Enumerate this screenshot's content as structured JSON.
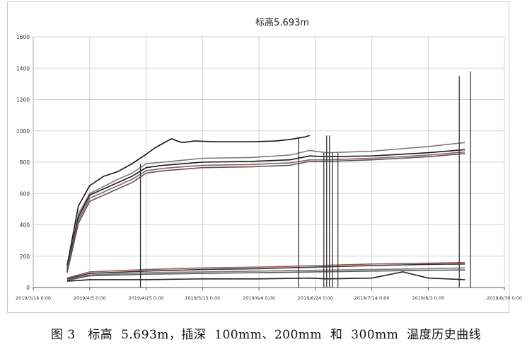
{
  "chart_data": {
    "type": "line",
    "title": "标高5.693m",
    "xlabel": "",
    "ylabel": "",
    "ylim": [
      0,
      1600
    ],
    "yticks": [
      0,
      200,
      400,
      600,
      800,
      1000,
      1200,
      1400,
      1600
    ],
    "xlim": [
      "2019-03-16",
      "2019-08-30"
    ],
    "xticks": [
      "2019/3/16 0:00",
      "2019/4/5 0:00",
      "2019/4/25 0:00",
      "2019/5/15 0:00",
      "2019/6/4 0:00",
      "2019/6/24 0:00",
      "2019/7/14 0:00",
      "2019/8/3 0:00",
      "2019/8/30 0:00"
    ],
    "xtick_dates": [
      "2019-03-16",
      "2019-04-05",
      "2019-04-25",
      "2019-05-15",
      "2019-06-04",
      "2019-06-24",
      "2019-07-14",
      "2019-08-03",
      "2019-08-30"
    ],
    "grid": true,
    "legend": "none",
    "series": [
      {
        "color": "#151515",
        "points": [
          [
            "2019-03-28",
            140
          ],
          [
            "2019-04-01",
            520
          ],
          [
            "2019-04-05",
            650
          ],
          [
            "2019-04-10",
            710
          ],
          [
            "2019-04-15",
            740
          ],
          [
            "2019-04-20",
            790
          ],
          [
            "2019-04-25",
            850
          ],
          [
            "2019-04-28",
            890
          ],
          [
            "2019-05-01",
            920
          ],
          [
            "2019-05-04",
            950
          ],
          [
            "2019-05-06",
            935
          ],
          [
            "2019-05-08",
            925
          ],
          [
            "2019-05-12",
            935
          ],
          [
            "2019-05-20",
            930
          ],
          [
            "2019-06-01",
            930
          ],
          [
            "2019-06-10",
            935
          ],
          [
            "2019-06-15",
            945
          ],
          [
            "2019-06-20",
            960
          ],
          [
            "2019-06-22",
            970
          ]
        ]
      },
      {
        "color": "#7a7a7a",
        "points": [
          [
            "2019-03-28",
            120
          ],
          [
            "2019-04-01",
            470
          ],
          [
            "2019-04-05",
            600
          ],
          [
            "2019-04-15",
            690
          ],
          [
            "2019-04-20",
            730
          ],
          [
            "2019-04-25",
            790
          ],
          [
            "2019-05-01",
            800
          ],
          [
            "2019-05-15",
            825
          ],
          [
            "2019-06-01",
            830
          ],
          [
            "2019-06-15",
            845
          ],
          [
            "2019-06-22",
            875
          ],
          [
            "2019-06-28",
            860
          ],
          [
            "2019-07-14",
            870
          ],
          [
            "2019-08-03",
            900
          ],
          [
            "2019-08-16",
            925
          ]
        ]
      },
      {
        "color": "#1a1a1a",
        "points": [
          [
            "2019-03-28",
            110
          ],
          [
            "2019-04-01",
            450
          ],
          [
            "2019-04-05",
            590
          ],
          [
            "2019-04-15",
            670
          ],
          [
            "2019-04-20",
            710
          ],
          [
            "2019-04-25",
            765
          ],
          [
            "2019-05-01",
            780
          ],
          [
            "2019-05-15",
            800
          ],
          [
            "2019-06-01",
            805
          ],
          [
            "2019-06-15",
            815
          ],
          [
            "2019-06-22",
            840
          ],
          [
            "2019-06-28",
            835
          ],
          [
            "2019-07-14",
            840
          ],
          [
            "2019-08-03",
            860
          ],
          [
            "2019-08-16",
            880
          ]
        ]
      },
      {
        "color": "#8e6060",
        "points": [
          [
            "2019-03-28",
            100
          ],
          [
            "2019-04-01",
            430
          ],
          [
            "2019-04-05",
            570
          ],
          [
            "2019-04-15",
            650
          ],
          [
            "2019-04-20",
            690
          ],
          [
            "2019-04-25",
            745
          ],
          [
            "2019-05-01",
            760
          ],
          [
            "2019-05-15",
            780
          ],
          [
            "2019-06-01",
            785
          ],
          [
            "2019-06-15",
            795
          ],
          [
            "2019-06-22",
            815
          ],
          [
            "2019-06-28",
            815
          ],
          [
            "2019-07-14",
            825
          ],
          [
            "2019-08-03",
            845
          ],
          [
            "2019-08-16",
            865
          ]
        ]
      },
      {
        "color": "#555555",
        "points": [
          [
            "2019-03-28",
            95
          ],
          [
            "2019-04-01",
            410
          ],
          [
            "2019-04-05",
            550
          ],
          [
            "2019-04-15",
            630
          ],
          [
            "2019-04-20",
            670
          ],
          [
            "2019-04-25",
            730
          ],
          [
            "2019-05-01",
            745
          ],
          [
            "2019-05-15",
            765
          ],
          [
            "2019-06-01",
            770
          ],
          [
            "2019-06-15",
            780
          ],
          [
            "2019-06-22",
            805
          ],
          [
            "2019-06-28",
            805
          ],
          [
            "2019-07-14",
            815
          ],
          [
            "2019-08-03",
            835
          ],
          [
            "2019-08-16",
            855
          ]
        ]
      },
      {
        "color": "#9b5a5a",
        "points": [
          [
            "2019-03-28",
            60
          ],
          [
            "2019-04-05",
            100
          ],
          [
            "2019-04-25",
            115
          ],
          [
            "2019-05-15",
            125
          ],
          [
            "2019-06-04",
            130
          ],
          [
            "2019-06-24",
            140
          ],
          [
            "2019-07-14",
            150
          ],
          [
            "2019-08-03",
            155
          ],
          [
            "2019-08-16",
            160
          ]
        ]
      },
      {
        "color": "#333333",
        "points": [
          [
            "2019-03-28",
            55
          ],
          [
            "2019-04-05",
            90
          ],
          [
            "2019-04-25",
            105
          ],
          [
            "2019-05-15",
            115
          ],
          [
            "2019-06-04",
            120
          ],
          [
            "2019-06-24",
            130
          ],
          [
            "2019-07-14",
            140
          ],
          [
            "2019-08-03",
            148
          ],
          [
            "2019-08-16",
            150
          ]
        ]
      },
      {
        "color": "#7a7a7a",
        "points": [
          [
            "2019-03-28",
            50
          ],
          [
            "2019-04-05",
            80
          ],
          [
            "2019-04-25",
            95
          ],
          [
            "2019-05-15",
            100
          ],
          [
            "2019-06-04",
            105
          ],
          [
            "2019-06-24",
            110
          ],
          [
            "2019-07-14",
            115
          ],
          [
            "2019-08-03",
            120
          ],
          [
            "2019-08-16",
            125
          ]
        ]
      },
      {
        "color": "#5a5a5a",
        "points": [
          [
            "2019-03-28",
            45
          ],
          [
            "2019-04-05",
            75
          ],
          [
            "2019-04-25",
            85
          ],
          [
            "2019-05-15",
            90
          ],
          [
            "2019-06-04",
            95
          ],
          [
            "2019-06-24",
            100
          ],
          [
            "2019-07-14",
            105
          ],
          [
            "2019-08-03",
            110
          ],
          [
            "2019-08-16",
            112
          ]
        ]
      },
      {
        "color": "#222222",
        "points": [
          [
            "2019-03-28",
            40
          ],
          [
            "2019-04-05",
            50
          ],
          [
            "2019-04-25",
            50
          ],
          [
            "2019-05-15",
            55
          ],
          [
            "2019-06-04",
            55
          ],
          [
            "2019-06-22",
            60
          ],
          [
            "2019-06-28",
            55
          ],
          [
            "2019-07-14",
            60
          ],
          [
            "2019-07-25",
            100
          ],
          [
            "2019-08-03",
            60
          ],
          [
            "2019-08-16",
            50
          ]
        ]
      }
    ],
    "vlines": [
      {
        "x": "2019-04-23",
        "y0": 0,
        "y1": 790
      },
      {
        "x": "2019-06-18",
        "y0": 0,
        "y1": 950
      },
      {
        "x": "2019-06-27",
        "y0": 0,
        "y1": 860
      },
      {
        "x": "2019-06-28",
        "y0": 0,
        "y1": 970
      },
      {
        "x": "2019-06-29",
        "y0": 0,
        "y1": 970
      },
      {
        "x": "2019-06-30",
        "y0": 0,
        "y1": 860
      },
      {
        "x": "2019-07-02",
        "y0": 0,
        "y1": 860
      },
      {
        "x": "2019-08-14",
        "y0": 0,
        "y1": 1350
      },
      {
        "x": "2019-08-18",
        "y0": 0,
        "y1": 1380
      }
    ]
  },
  "caption": "图 3   标高  5.693m，插深  100mm、200mm  和  300mm  温度历史曲线"
}
